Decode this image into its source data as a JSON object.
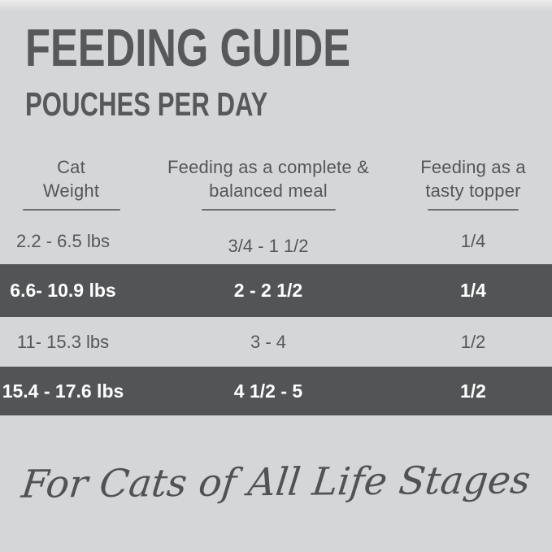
{
  "header": {
    "title": "FEEDING GUIDE",
    "subtitle": "POUCHES PER DAY"
  },
  "table": {
    "columns": [
      {
        "line1": "Cat",
        "line2": "Weight"
      },
      {
        "line1": "Feeding as a complete &",
        "line2": "balanced meal"
      },
      {
        "line1": "Feeding as a",
        "line2": "tasty topper"
      }
    ],
    "rows": [
      {
        "weight": "2.2 - 6.5 lbs",
        "meal": "3/4 - 1 1/2",
        "topper": "1/4",
        "highlighted": false
      },
      {
        "weight": "6.6- 10.9 lbs",
        "meal": "2 - 2 1/2",
        "topper": "1/4",
        "highlighted": true
      },
      {
        "weight": "11- 15.3 lbs",
        "meal": "3 - 4",
        "topper": "1/2",
        "highlighted": false
      },
      {
        "weight": "15.4 - 17.6 lbs",
        "meal": "4 1/2 - 5",
        "topper": "1/2",
        "highlighted": true
      }
    ]
  },
  "footer": {
    "tagline": "For Cats of All Life Stages"
  },
  "colors": {
    "background": "#d5d6d7",
    "highlight_row": "#535456",
    "text_dark": "#56575a",
    "text_on_dark": "#ffffff",
    "underline": "#6e6f72"
  }
}
